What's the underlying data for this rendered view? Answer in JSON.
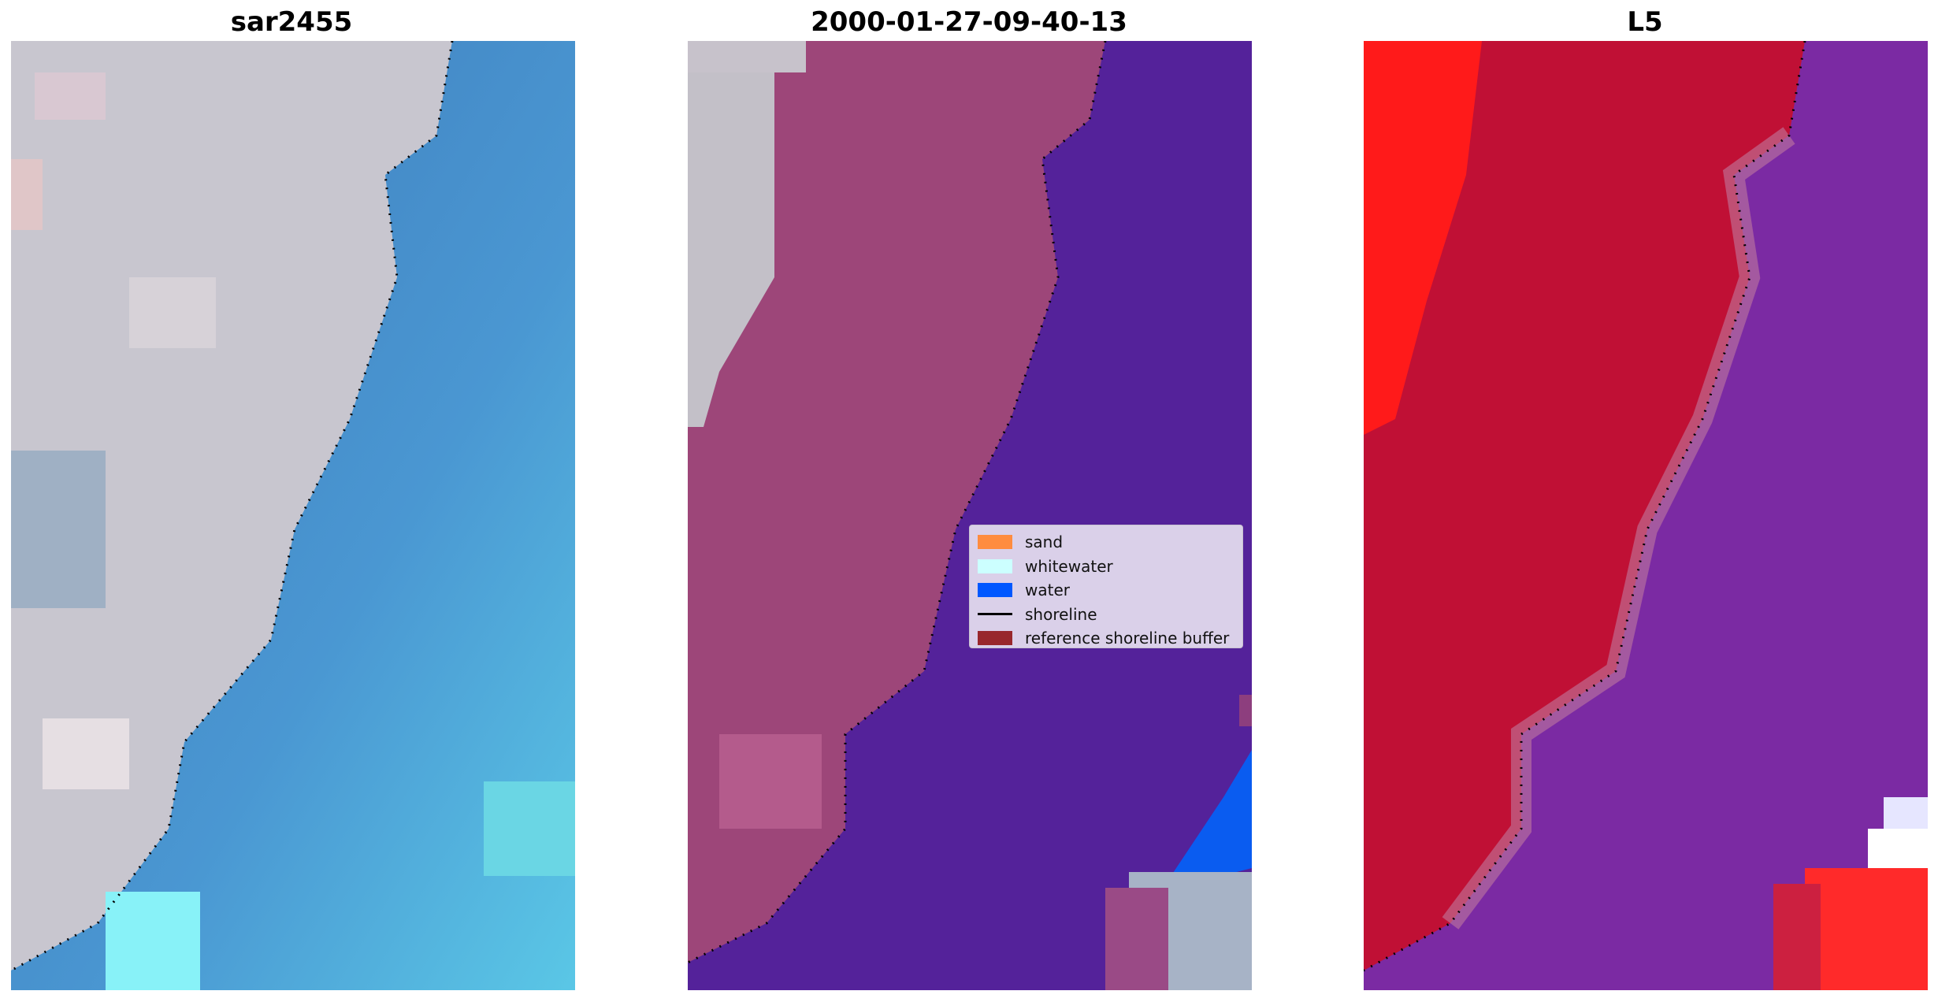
{
  "panels": [
    {
      "title": "sar2455"
    },
    {
      "title": "2000-01-27-09-40-13"
    },
    {
      "title": "L5"
    }
  ],
  "legend": {
    "items": [
      {
        "label": "sand",
        "color": "#ff8c3f",
        "kind": "patch"
      },
      {
        "label": "whitewater",
        "color": "#ccffff",
        "kind": "patch"
      },
      {
        "label": "water",
        "color": "#0057ff",
        "kind": "patch"
      },
      {
        "label": "shoreline",
        "color": "#000000",
        "kind": "line"
      },
      {
        "label": "reference shoreline buffer",
        "color": "#98272c",
        "kind": "patch"
      }
    ]
  },
  "colors": {
    "land_rgb": "#c9c4cc",
    "sea_rgb": "#3e7fbf",
    "classified_land": "#a0467a",
    "classified_water": "#54229a",
    "mndwi_land": "#c01035",
    "mndwi_water": "#7b2aa3"
  }
}
